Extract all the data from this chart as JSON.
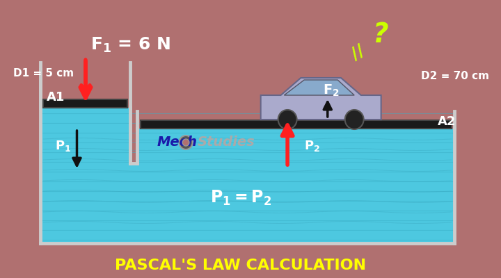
{
  "bg_color": "#b07070",
  "fluid_color_light": "#4dc8e0",
  "fluid_color_dark": "#3ab0c8",
  "piston_color": "#1a1a1a",
  "title": "PASCAL'S LAW CALCULATION",
  "title_color": "#ffff00",
  "title_fontsize": 16,
  "label_color": "#ffffff",
  "D1_label": "D1 = 5 cm",
  "D2_label": "D2 = 70 cm",
  "F1_label": "F",
  "F1_sub": "1",
  "F1_val": " = 6 N",
  "F2_label": "F",
  "F2_sub": "2",
  "A1_label": "A1",
  "A2_label": "A2",
  "P1_label": "P",
  "P1_sub": "1",
  "P2_label": "P",
  "P2_sub": "2",
  "P_eq": "P",
  "P_eq1_sub": "1",
  "P_eq2_sub": "2",
  "mech_text1": "Mech",
  "mech_text2": "Studies",
  "question_color": "#ccff00",
  "arrow_red": "#ff2020",
  "arrow_black": "#111111",
  "wall_color": "#555555",
  "wall_thickness": 4
}
